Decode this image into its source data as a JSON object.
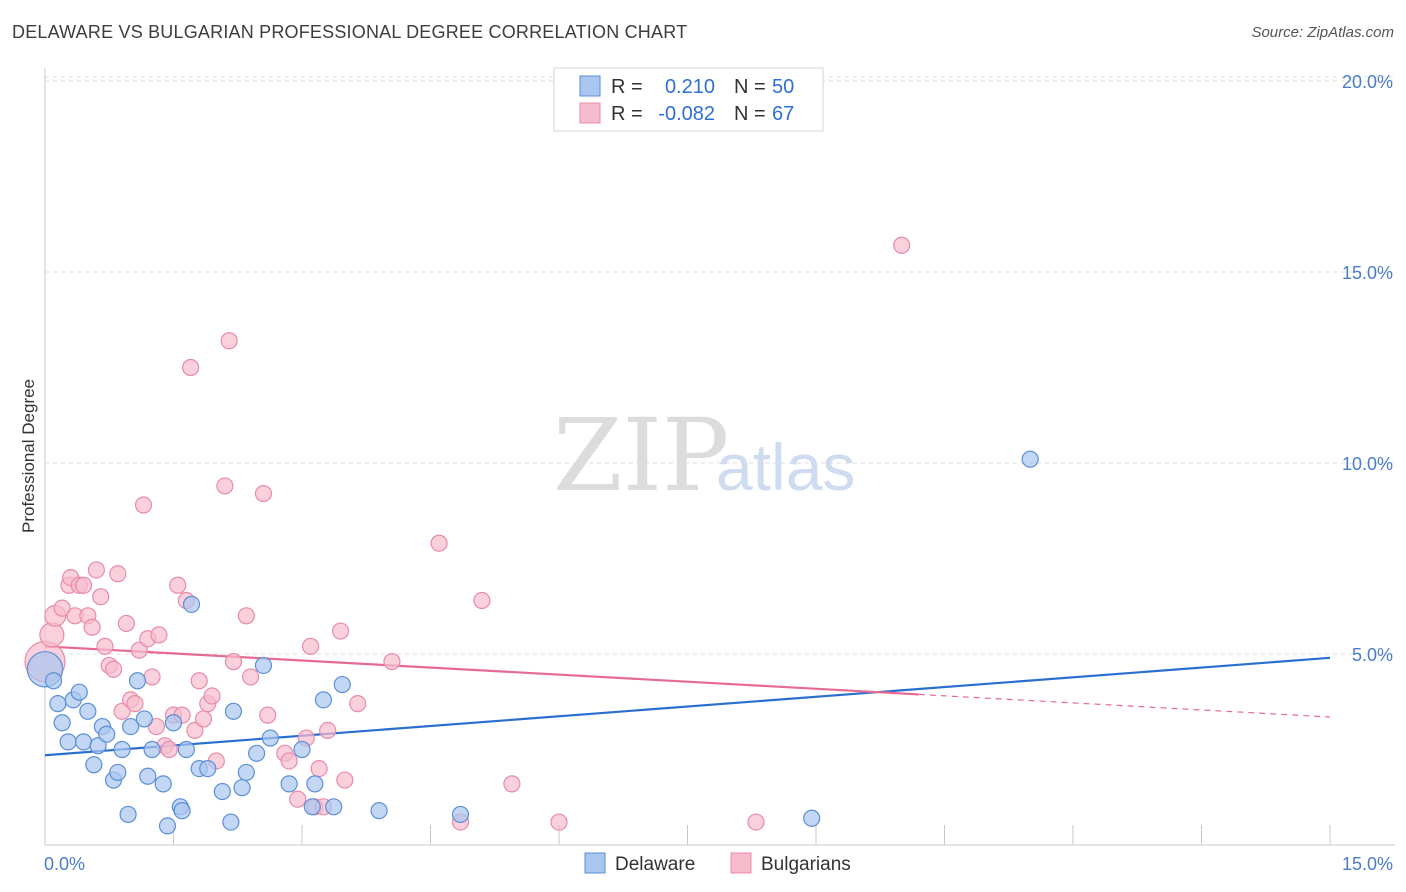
{
  "title": "DELAWARE VS BULGARIAN PROFESSIONAL DEGREE CORRELATION CHART",
  "source": "Source: ZipAtlas.com",
  "colors": {
    "delaware_fill": "#a9c6ef",
    "delaware_stroke": "#5b8fd8",
    "delaware_line": "#2a6fcf",
    "bulgarian_fill": "#f6bccd",
    "bulgarian_stroke": "#e98ba7",
    "bulgarian_line": "#e66b93",
    "tick_text": "#4a7cc9"
  },
  "legend": {
    "delaware": {
      "r_label": "R =",
      "r_value": "0.210",
      "n_label": "N =",
      "n_value": "50"
    },
    "bulgarian": {
      "r_label": "R =",
      "r_value": "-0.082",
      "n_label": "N =",
      "n_value": "67"
    }
  },
  "watermark": {
    "zip": "ZIP",
    "atlas": "atlas"
  },
  "chart_data": {
    "type": "scatter",
    "title": "DELAWARE VS BULGARIAN PROFESSIONAL DEGREE CORRELATION CHART",
    "xlabel": "",
    "ylabel": "Professional Degree",
    "xlim": [
      0,
      15
    ],
    "ylim": [
      0,
      20.5
    ],
    "x_tick_labels": [
      "0.0%",
      "15.0%"
    ],
    "y_ticks": [
      {
        "value": 5,
        "label": "5.0%"
      },
      {
        "value": 10,
        "label": "10.0%"
      },
      {
        "value": 15,
        "label": "15.0%"
      },
      {
        "value": 20,
        "label": "20.0%"
      }
    ],
    "legend_position": "bottom-center",
    "series": [
      {
        "name": "Delaware",
        "r": 0.21,
        "n": 50,
        "trend": {
          "x": [
            0,
            15
          ],
          "y": [
            2.35,
            4.9
          ],
          "dashed_from_x": null
        },
        "points": [
          [
            0.0,
            4.6,
            2.2
          ],
          [
            0.1,
            4.3,
            1
          ],
          [
            0.15,
            3.7,
            1
          ],
          [
            0.2,
            3.2,
            1
          ],
          [
            0.27,
            2.7,
            1
          ],
          [
            0.33,
            3.8,
            1
          ],
          [
            0.4,
            4.0,
            1
          ],
          [
            0.45,
            2.7,
            1
          ],
          [
            0.5,
            3.5,
            1
          ],
          [
            0.57,
            2.1,
            1
          ],
          [
            0.62,
            2.6,
            1
          ],
          [
            0.67,
            3.1,
            1
          ],
          [
            0.72,
            2.9,
            1
          ],
          [
            0.8,
            1.7,
            1
          ],
          [
            0.85,
            1.9,
            1
          ],
          [
            0.9,
            2.5,
            1
          ],
          [
            0.97,
            0.8,
            1
          ],
          [
            1.0,
            3.1,
            1
          ],
          [
            1.08,
            4.3,
            1
          ],
          [
            1.16,
            3.3,
            1
          ],
          [
            1.2,
            1.8,
            1
          ],
          [
            1.25,
            2.5,
            1
          ],
          [
            1.38,
            1.6,
            1
          ],
          [
            1.43,
            0.5,
            1
          ],
          [
            1.5,
            3.2,
            1
          ],
          [
            1.58,
            1.0,
            1
          ],
          [
            1.6,
            0.9,
            1
          ],
          [
            1.65,
            2.5,
            1
          ],
          [
            1.71,
            6.3,
            1
          ],
          [
            1.8,
            2.0,
            1
          ],
          [
            1.9,
            2.0,
            1
          ],
          [
            2.07,
            1.4,
            1
          ],
          [
            2.17,
            0.6,
            1
          ],
          [
            2.2,
            3.5,
            1
          ],
          [
            2.3,
            1.5,
            1
          ],
          [
            2.35,
            1.9,
            1
          ],
          [
            2.47,
            2.4,
            1
          ],
          [
            2.55,
            4.7,
            1
          ],
          [
            2.63,
            2.8,
            1
          ],
          [
            2.85,
            1.6,
            1
          ],
          [
            3.0,
            2.5,
            1
          ],
          [
            3.12,
            1.0,
            1
          ],
          [
            3.15,
            1.6,
            1
          ],
          [
            3.25,
            3.8,
            1
          ],
          [
            3.37,
            1.0,
            1
          ],
          [
            3.47,
            4.2,
            1
          ],
          [
            3.9,
            0.9,
            1
          ],
          [
            4.85,
            0.8,
            1
          ],
          [
            8.95,
            0.7,
            1
          ],
          [
            11.5,
            10.1,
            1
          ]
        ]
      },
      {
        "name": "Bulgarians",
        "r": -0.082,
        "n": 67,
        "trend": {
          "x": [
            0,
            15
          ],
          "y": [
            5.2,
            3.35
          ],
          "dashed_from_x": 10.2
        },
        "points": [
          [
            0.0,
            4.8,
            2.5
          ],
          [
            0.08,
            5.5,
            1.5
          ],
          [
            0.12,
            6.0,
            1.3
          ],
          [
            0.2,
            6.2,
            1
          ],
          [
            0.28,
            6.8,
            1
          ],
          [
            0.3,
            7.0,
            1
          ],
          [
            0.35,
            6.0,
            1
          ],
          [
            0.4,
            6.8,
            1
          ],
          [
            0.45,
            6.8,
            1
          ],
          [
            0.5,
            6.0,
            1
          ],
          [
            0.55,
            5.7,
            1
          ],
          [
            0.6,
            7.2,
            1
          ],
          [
            0.65,
            6.5,
            1
          ],
          [
            0.7,
            5.2,
            1
          ],
          [
            0.75,
            4.7,
            1
          ],
          [
            0.8,
            4.6,
            1
          ],
          [
            0.85,
            7.1,
            1
          ],
          [
            0.9,
            3.5,
            1
          ],
          [
            0.95,
            5.8,
            1
          ],
          [
            1.0,
            3.8,
            1
          ],
          [
            1.05,
            3.7,
            1
          ],
          [
            1.1,
            5.1,
            1
          ],
          [
            1.15,
            8.9,
            1
          ],
          [
            1.2,
            5.4,
            1
          ],
          [
            1.25,
            4.4,
            1
          ],
          [
            1.3,
            3.1,
            1
          ],
          [
            1.33,
            5.5,
            1
          ],
          [
            1.4,
            2.6,
            1
          ],
          [
            1.45,
            2.5,
            1
          ],
          [
            1.5,
            3.4,
            1
          ],
          [
            1.55,
            6.8,
            1
          ],
          [
            1.6,
            3.4,
            1
          ],
          [
            1.65,
            6.4,
            1
          ],
          [
            1.7,
            12.5,
            1
          ],
          [
            1.75,
            3.0,
            1
          ],
          [
            1.8,
            4.3,
            1
          ],
          [
            1.85,
            3.3,
            1
          ],
          [
            1.9,
            3.7,
            1
          ],
          [
            1.95,
            3.9,
            1
          ],
          [
            2.0,
            2.2,
            1
          ],
          [
            2.1,
            9.4,
            1
          ],
          [
            2.15,
            13.2,
            1
          ],
          [
            2.2,
            4.8,
            1
          ],
          [
            2.35,
            6.0,
            1
          ],
          [
            2.4,
            4.4,
            1
          ],
          [
            2.55,
            9.2,
            1
          ],
          [
            2.6,
            3.4,
            1
          ],
          [
            2.8,
            2.4,
            1
          ],
          [
            2.85,
            2.2,
            1
          ],
          [
            2.95,
            1.2,
            1
          ],
          [
            3.05,
            2.8,
            1
          ],
          [
            3.1,
            5.2,
            1
          ],
          [
            3.15,
            1.0,
            1
          ],
          [
            3.2,
            2.0,
            1
          ],
          [
            3.25,
            1.0,
            1
          ],
          [
            3.3,
            3.0,
            1
          ],
          [
            3.45,
            5.6,
            1
          ],
          [
            3.5,
            1.7,
            1
          ],
          [
            3.65,
            3.7,
            1
          ],
          [
            4.05,
            4.8,
            1
          ],
          [
            4.6,
            7.9,
            1
          ],
          [
            4.85,
            0.6,
            1
          ],
          [
            5.1,
            6.4,
            1
          ],
          [
            5.45,
            1.6,
            1
          ],
          [
            6.0,
            0.6,
            1
          ],
          [
            8.3,
            0.6,
            1
          ],
          [
            10.0,
            15.7,
            1
          ]
        ]
      }
    ]
  }
}
